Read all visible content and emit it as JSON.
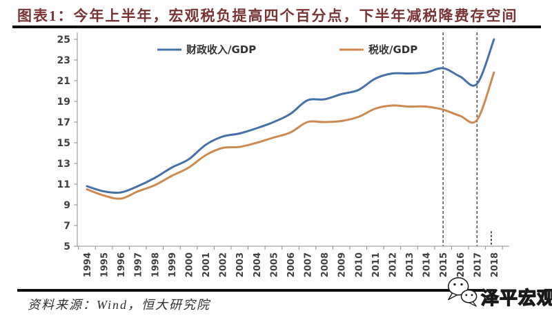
{
  "chart_data": {
    "type": "line",
    "title": "图表1：今年上半年，宏观税负提高四个百分点，下半年减税降费存空间",
    "x": [
      1994,
      1995,
      1996,
      1997,
      1998,
      1999,
      2000,
      2001,
      2002,
      2003,
      2004,
      2005,
      2006,
      2007,
      2008,
      2009,
      2010,
      2011,
      2012,
      2013,
      2014,
      2015,
      2016,
      2017,
      2018
    ],
    "series": [
      {
        "name": "财政收入/GDP",
        "color": "#4472a8",
        "values": [
          10.8,
          10.3,
          10.2,
          10.8,
          11.6,
          12.6,
          13.4,
          14.8,
          15.6,
          15.9,
          16.4,
          17.0,
          17.8,
          19.1,
          19.2,
          19.7,
          20.1,
          21.2,
          21.7,
          21.7,
          21.8,
          22.2,
          21.4,
          20.7,
          25.0
        ]
      },
      {
        "name": "税收/GDP",
        "color": "#cd8950",
        "values": [
          10.5,
          9.9,
          9.6,
          10.3,
          10.9,
          11.8,
          12.6,
          13.8,
          14.5,
          14.6,
          15.0,
          15.5,
          16.0,
          17.0,
          17.0,
          17.1,
          17.5,
          18.3,
          18.6,
          18.5,
          18.5,
          18.2,
          17.6,
          17.2,
          21.8
        ]
      }
    ],
    "xlabel": "",
    "ylabel": "",
    "ylim": [
      5,
      25
    ],
    "yticks": [
      5,
      7,
      9,
      11,
      13,
      15,
      17,
      19,
      21,
      23,
      25
    ],
    "grid": false,
    "legend_position": "top",
    "annotations": {
      "dashed_vlines_x": [
        2015,
        2017
      ],
      "axis_end_dotted": true
    }
  },
  "footer": {
    "source": "资料来源：Wind，恒大研究院",
    "logo_text": "泽平宏观"
  },
  "colors": {
    "title": "#7a3333",
    "axis": "#8c8c8c",
    "tick_label": "#404040",
    "legend_label": "#333333",
    "dashed_line": "#3f3f3f",
    "rule": "#0f0f0f",
    "series_blue": "#4472a8",
    "series_orange": "#cd8950"
  }
}
